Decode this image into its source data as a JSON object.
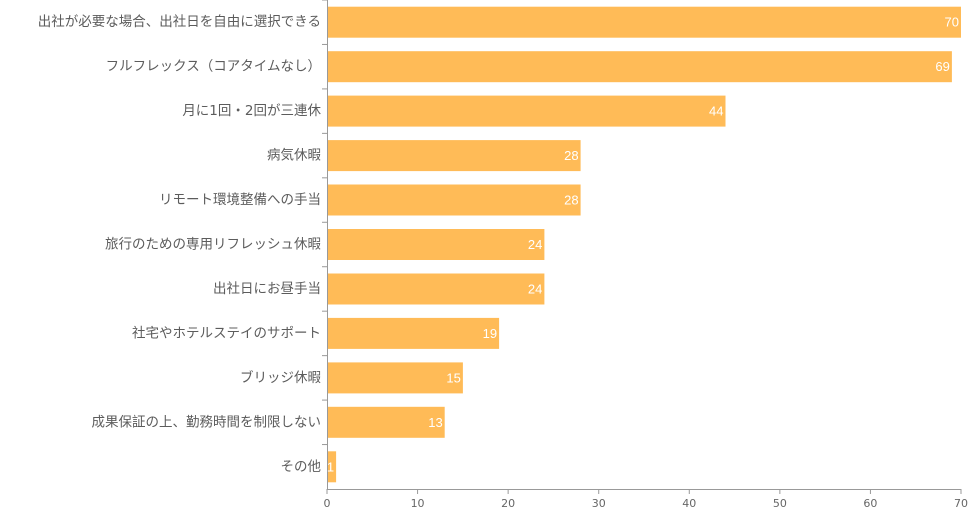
{
  "chart_data": {
    "type": "bar",
    "orientation": "horizontal",
    "categories": [
      "出社が必要な場合、出社日を自由に選択できる",
      "フルフレックス（コアタイムなし）",
      "月に1回・2回が三連休",
      "病気休暇",
      "リモート環境整備への手当",
      "旅行のための専用リフレッシュ休暇",
      "出社日にお昼手当",
      "社宅やホテルステイのサポート",
      "ブリッジ休暇",
      "成果保証の上、勤務時間を制限しない",
      "その他"
    ],
    "values": [
      70,
      69,
      44,
      28,
      28,
      24,
      24,
      19,
      15,
      13,
      1
    ],
    "value_labels": [
      "70",
      "69",
      "44",
      "28",
      "28",
      "24",
      "24",
      "19",
      "15",
      "13",
      "1"
    ],
    "xlim": [
      0,
      70
    ],
    "xticks": [
      0,
      10,
      20,
      30,
      40,
      50,
      60,
      70
    ],
    "xtick_labels": [
      "0",
      "10",
      "20",
      "30",
      "40",
      "50",
      "60",
      "70"
    ],
    "grid": false,
    "legend": "none",
    "bar_color": "#FFBB57",
    "axis_color": "#999999"
  }
}
